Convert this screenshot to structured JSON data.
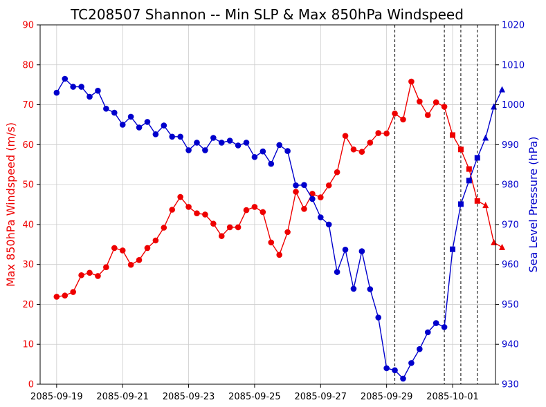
{
  "chart_data": {
    "type": "line",
    "title": "TC208507 Shannon -- Min SLP & Max 850hPa Windspeed",
    "xlabel": "",
    "ylabel_left": "Max 850hPa Windspeed (m/s)",
    "ylabel_right": "Sea Level Pressure (hPa)",
    "ylim_left": [
      0,
      90
    ],
    "ylim_right": [
      930,
      1020
    ],
    "yticks_left": [
      0,
      10,
      20,
      30,
      40,
      50,
      60,
      70,
      80,
      90
    ],
    "yticks_right": [
      930,
      940,
      950,
      960,
      970,
      980,
      990,
      1000,
      1010,
      1020
    ],
    "xticks": [
      "2085-09-19",
      "2085-09-21",
      "2085-09-23",
      "2085-09-25",
      "2085-09-27",
      "2085-09-29",
      "2085-10-01"
    ],
    "xrange_days": [
      -0.5,
      13.3
    ],
    "grid": true,
    "colors": {
      "wind": "#ee0000",
      "pressure": "#0000cc",
      "left_axis": "#ee0000",
      "right_axis": "#0000cc"
    },
    "phase_lines_days": [
      10.25,
      11.75,
      12.25,
      12.75
    ],
    "series": [
      {
        "axis": "left",
        "points": [
          {
            "d": 0.0,
            "v": 21.9,
            "m": "circle"
          },
          {
            "d": 0.25,
            "v": 22.2,
            "m": "circle"
          },
          {
            "d": 0.5,
            "v": 23.1,
            "m": "circle"
          },
          {
            "d": 0.75,
            "v": 27.3,
            "m": "circle"
          },
          {
            "d": 1.0,
            "v": 27.9,
            "m": "circle"
          },
          {
            "d": 1.25,
            "v": 27.1,
            "m": "circle"
          },
          {
            "d": 1.5,
            "v": 29.3,
            "m": "circle"
          },
          {
            "d": 1.75,
            "v": 34.1,
            "m": "circle"
          },
          {
            "d": 2.0,
            "v": 33.5,
            "m": "circle"
          },
          {
            "d": 2.25,
            "v": 29.9,
            "m": "circle"
          },
          {
            "d": 2.5,
            "v": 31.1,
            "m": "circle"
          },
          {
            "d": 2.75,
            "v": 34.1,
            "m": "circle"
          },
          {
            "d": 3.0,
            "v": 36.0,
            "m": "circle"
          },
          {
            "d": 3.25,
            "v": 39.2,
            "m": "circle"
          },
          {
            "d": 3.5,
            "v": 43.7,
            "m": "circle"
          },
          {
            "d": 3.75,
            "v": 46.9,
            "m": "circle"
          },
          {
            "d": 4.0,
            "v": 44.4,
            "m": "circle"
          },
          {
            "d": 4.25,
            "v": 42.8,
            "m": "circle"
          },
          {
            "d": 4.5,
            "v": 42.5,
            "m": "circle"
          },
          {
            "d": 4.75,
            "v": 40.2,
            "m": "circle"
          },
          {
            "d": 5.0,
            "v": 37.1,
            "m": "circle"
          },
          {
            "d": 5.25,
            "v": 39.3,
            "m": "circle"
          },
          {
            "d": 5.5,
            "v": 39.3,
            "m": "circle"
          },
          {
            "d": 5.75,
            "v": 43.6,
            "m": "circle"
          },
          {
            "d": 6.0,
            "v": 44.4,
            "m": "circle"
          },
          {
            "d": 6.25,
            "v": 43.1,
            "m": "circle"
          },
          {
            "d": 6.5,
            "v": 35.5,
            "m": "circle"
          },
          {
            "d": 6.75,
            "v": 32.4,
            "m": "circle"
          },
          {
            "d": 7.0,
            "v": 38.1,
            "m": "circle"
          },
          {
            "d": 7.25,
            "v": 48.2,
            "m": "circle"
          },
          {
            "d": 7.5,
            "v": 43.9,
            "m": "circle"
          },
          {
            "d": 7.75,
            "v": 47.7,
            "m": "circle"
          },
          {
            "d": 8.0,
            "v": 46.8,
            "m": "circle"
          },
          {
            "d": 8.25,
            "v": 49.8,
            "m": "circle"
          },
          {
            "d": 8.5,
            "v": 53.1,
            "m": "circle"
          },
          {
            "d": 8.75,
            "v": 62.2,
            "m": "circle"
          },
          {
            "d": 9.0,
            "v": 58.8,
            "m": "circle"
          },
          {
            "d": 9.25,
            "v": 58.2,
            "m": "circle"
          },
          {
            "d": 9.5,
            "v": 60.5,
            "m": "circle"
          },
          {
            "d": 9.75,
            "v": 62.9,
            "m": "circle"
          },
          {
            "d": 10.0,
            "v": 62.8,
            "m": "circle"
          },
          {
            "d": 10.25,
            "v": 67.8,
            "m": "circle"
          },
          {
            "d": 10.5,
            "v": 66.3,
            "m": "circle"
          },
          {
            "d": 10.75,
            "v": 75.8,
            "m": "circle"
          },
          {
            "d": 11.0,
            "v": 70.8,
            "m": "circle"
          },
          {
            "d": 11.25,
            "v": 67.4,
            "m": "circle"
          },
          {
            "d": 11.5,
            "v": 70.6,
            "m": "circle"
          },
          {
            "d": 11.75,
            "v": 69.5,
            "m": "circle"
          },
          {
            "d": 12.0,
            "v": 62.4,
            "m": "square"
          },
          {
            "d": 12.25,
            "v": 58.8,
            "m": "square"
          },
          {
            "d": 12.5,
            "v": 53.9,
            "m": "square"
          },
          {
            "d": 12.75,
            "v": 45.9,
            "m": "square"
          },
          {
            "d": 13.0,
            "v": 44.8,
            "m": "triangle"
          },
          {
            "d": 13.25,
            "v": 35.5,
            "m": "triangle"
          },
          {
            "d": 13.5,
            "v": 34.3,
            "m": "triangle"
          }
        ]
      },
      {
        "axis": "right",
        "points": [
          {
            "d": 0.0,
            "v": 1003.0,
            "m": "circle"
          },
          {
            "d": 0.25,
            "v": 1006.5,
            "m": "circle"
          },
          {
            "d": 0.5,
            "v": 1004.5,
            "m": "circle"
          },
          {
            "d": 0.75,
            "v": 1004.5,
            "m": "circle"
          },
          {
            "d": 1.0,
            "v": 1002.0,
            "m": "circle"
          },
          {
            "d": 1.25,
            "v": 1003.5,
            "m": "circle"
          },
          {
            "d": 1.5,
            "v": 999.0,
            "m": "circle"
          },
          {
            "d": 1.75,
            "v": 998.0,
            "m": "circle"
          },
          {
            "d": 2.0,
            "v": 995.0,
            "m": "circle"
          },
          {
            "d": 2.25,
            "v": 997.0,
            "m": "circle"
          },
          {
            "d": 2.5,
            "v": 994.3,
            "m": "circle"
          },
          {
            "d": 2.75,
            "v": 995.7,
            "m": "circle"
          },
          {
            "d": 3.0,
            "v": 992.6,
            "m": "circle"
          },
          {
            "d": 3.25,
            "v": 994.8,
            "m": "circle"
          },
          {
            "d": 3.5,
            "v": 992.0,
            "m": "circle"
          },
          {
            "d": 3.75,
            "v": 992.0,
            "m": "circle"
          },
          {
            "d": 4.0,
            "v": 988.6,
            "m": "circle"
          },
          {
            "d": 4.25,
            "v": 990.5,
            "m": "circle"
          },
          {
            "d": 4.5,
            "v": 988.6,
            "m": "circle"
          },
          {
            "d": 4.75,
            "v": 991.7,
            "m": "circle"
          },
          {
            "d": 5.0,
            "v": 990.5,
            "m": "circle"
          },
          {
            "d": 5.25,
            "v": 991.0,
            "m": "circle"
          },
          {
            "d": 5.5,
            "v": 989.8,
            "m": "circle"
          },
          {
            "d": 5.75,
            "v": 990.5,
            "m": "circle"
          },
          {
            "d": 6.0,
            "v": 986.9,
            "m": "circle"
          },
          {
            "d": 6.25,
            "v": 988.3,
            "m": "circle"
          },
          {
            "d": 6.5,
            "v": 985.2,
            "m": "circle"
          },
          {
            "d": 6.75,
            "v": 989.9,
            "m": "circle"
          },
          {
            "d": 7.0,
            "v": 988.4,
            "m": "circle"
          },
          {
            "d": 7.25,
            "v": 979.8,
            "m": "circle"
          },
          {
            "d": 7.5,
            "v": 979.9,
            "m": "circle"
          },
          {
            "d": 7.75,
            "v": 976.4,
            "m": "circle"
          },
          {
            "d": 8.0,
            "v": 971.8,
            "m": "circle"
          },
          {
            "d": 8.25,
            "v": 970.0,
            "m": "circle"
          },
          {
            "d": 8.5,
            "v": 958.1,
            "m": "circle"
          },
          {
            "d": 8.75,
            "v": 963.7,
            "m": "circle"
          },
          {
            "d": 9.0,
            "v": 953.9,
            "m": "circle"
          },
          {
            "d": 9.25,
            "v": 963.3,
            "m": "circle"
          },
          {
            "d": 9.5,
            "v": 953.8,
            "m": "circle"
          },
          {
            "d": 9.75,
            "v": 946.7,
            "m": "circle"
          },
          {
            "d": 10.0,
            "v": 934.0,
            "m": "circle"
          },
          {
            "d": 10.25,
            "v": 933.5,
            "m": "circle"
          },
          {
            "d": 10.5,
            "v": 931.4,
            "m": "circle"
          },
          {
            "d": 10.75,
            "v": 935.3,
            "m": "circle"
          },
          {
            "d": 11.0,
            "v": 938.8,
            "m": "circle"
          },
          {
            "d": 11.25,
            "v": 943.0,
            "m": "circle"
          },
          {
            "d": 11.5,
            "v": 945.3,
            "m": "circle"
          },
          {
            "d": 11.75,
            "v": 944.3,
            "m": "circle"
          },
          {
            "d": 12.0,
            "v": 963.8,
            "m": "square"
          },
          {
            "d": 12.25,
            "v": 975.1,
            "m": "square"
          },
          {
            "d": 12.5,
            "v": 981.0,
            "m": "square"
          },
          {
            "d": 12.75,
            "v": 986.7,
            "m": "square"
          },
          {
            "d": 13.0,
            "v": 991.7,
            "m": "triangle"
          },
          {
            "d": 13.25,
            "v": 999.5,
            "m": "triangle"
          },
          {
            "d": 13.5,
            "v": 1003.8,
            "m": "triangle"
          }
        ]
      }
    ]
  }
}
